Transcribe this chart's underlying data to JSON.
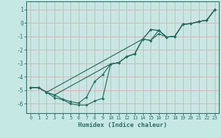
{
  "xlabel": "Humidex (Indice chaleur)",
  "xlim": [
    -0.5,
    23.5
  ],
  "ylim": [
    -6.7,
    1.6
  ],
  "yticks": [
    1,
    0,
    -1,
    -2,
    -3,
    -4,
    -5,
    -6
  ],
  "xticks": [
    0,
    1,
    2,
    3,
    4,
    5,
    6,
    7,
    8,
    9,
    10,
    11,
    12,
    13,
    14,
    15,
    16,
    17,
    18,
    19,
    20,
    21,
    22,
    23
  ],
  "bg_color": "#c5e8e5",
  "grid_color": "#e0b0b0",
  "line_color": "#2a6e62",
  "series1_x": [
    0,
    1,
    2,
    3,
    4,
    5,
    6,
    7,
    8,
    9,
    10,
    11,
    12,
    13,
    14,
    15,
    16,
    17,
    18,
    19,
    20,
    21,
    22,
    23
  ],
  "series1_y": [
    -4.8,
    -4.8,
    -5.15,
    -5.35,
    -5.65,
    -5.85,
    -5.95,
    -5.5,
    -4.35,
    -3.85,
    -3.05,
    -2.95,
    -2.5,
    -2.3,
    -1.2,
    -0.5,
    -0.55,
    -1.05,
    -1.0,
    -0.1,
    -0.05,
    0.1,
    0.2,
    1.0
  ],
  "series2_x": [
    0,
    1,
    2,
    3,
    4,
    5,
    6,
    7,
    8,
    9,
    10,
    11,
    12,
    13,
    14,
    15,
    16,
    17,
    18,
    19,
    20,
    21,
    22,
    23
  ],
  "series2_y": [
    -4.8,
    -4.8,
    -5.15,
    -5.55,
    -5.7,
    -6.0,
    -6.1,
    -6.1,
    -5.8,
    -5.6,
    -3.05,
    -2.95,
    -2.5,
    -2.3,
    -1.2,
    -1.3,
    -0.8,
    -1.05,
    -1.0,
    -0.1,
    -0.05,
    0.1,
    0.2,
    1.0
  ],
  "series3_x": [
    0,
    1,
    2,
    14,
    15,
    16,
    17,
    18,
    19,
    20,
    21,
    22,
    23
  ],
  "series3_y": [
    -4.8,
    -4.8,
    -5.15,
    -1.2,
    -1.3,
    -0.55,
    -1.05,
    -1.0,
    -0.1,
    -0.05,
    0.1,
    0.2,
    1.0
  ],
  "series4_x": [
    0,
    1,
    2,
    3,
    10,
    11,
    12,
    13,
    14,
    15,
    16,
    17,
    18,
    19,
    20,
    21,
    22,
    23
  ],
  "series4_y": [
    -4.8,
    -4.8,
    -5.15,
    -5.35,
    -3.05,
    -2.95,
    -2.5,
    -2.3,
    -1.2,
    -0.5,
    -0.55,
    -1.05,
    -1.0,
    -0.1,
    -0.05,
    0.1,
    0.2,
    1.0
  ]
}
